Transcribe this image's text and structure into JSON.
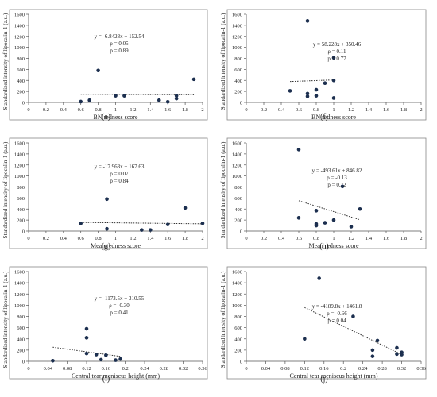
{
  "chart_data": [
    {
      "panel": "(e)",
      "type": "scatter",
      "xlabel": "BN redness score",
      "ylabel": "Standardized intensity of lipocalin-1 (a.u.)",
      "xlim": [
        0,
        2
      ],
      "ylim": [
        0,
        1600
      ],
      "xticks": [
        0,
        0.2,
        0.4,
        0.6,
        0.8,
        1,
        1.2,
        1.4,
        1.6,
        1.8,
        2
      ],
      "xtick_labels": [
        "0",
        "0.2",
        "0.4",
        "0.6",
        "0.8",
        "1",
        "1.2",
        "1.4",
        "1.6",
        "1.8",
        "2"
      ],
      "yticks": [
        0,
        200,
        400,
        600,
        800,
        1000,
        1200,
        1400,
        1600
      ],
      "points": [
        [
          0.6,
          15
        ],
        [
          0.7,
          40
        ],
        [
          0.8,
          580
        ],
        [
          1.0,
          120
        ],
        [
          1.1,
          120
        ],
        [
          1.5,
          40
        ],
        [
          1.6,
          10
        ],
        [
          1.7,
          120
        ],
        [
          1.7,
          70
        ],
        [
          1.9,
          420
        ]
      ],
      "trendline": {
        "slope": -6.8423,
        "intercept": 152.54,
        "x_range": [
          0.6,
          1.9
        ]
      },
      "annotation": [
        "y = -6.8423x + 152.54",
        "ρ = 0.05",
        "p = 0.89"
      ]
    },
    {
      "panel": "(f)",
      "type": "scatter",
      "xlabel": "BN redness score",
      "ylabel": "Standardized intensity of lipocalin-1 (a.u.)",
      "xlim": [
        0,
        2
      ],
      "ylim": [
        0,
        1600
      ],
      "xticks": [
        0,
        0.2,
        0.4,
        0.6,
        0.8,
        1,
        1.2,
        1.4,
        1.6,
        1.8,
        2
      ],
      "xtick_labels": [
        "0",
        "0.2",
        "0.4",
        "0.6",
        "0.8",
        "1",
        "1.2",
        "1.4",
        "1.6",
        "1.8",
        "2"
      ],
      "yticks": [
        0,
        200,
        400,
        600,
        800,
        1000,
        1200,
        1400,
        1600
      ],
      "points": [
        [
          0.5,
          210
        ],
        [
          0.7,
          1480
        ],
        [
          0.7,
          160
        ],
        [
          0.7,
          110
        ],
        [
          0.8,
          230
        ],
        [
          0.8,
          120
        ],
        [
          0.9,
          350
        ],
        [
          1.0,
          400
        ],
        [
          1.0,
          80
        ],
        [
          1.0,
          810
        ]
      ],
      "trendline": {
        "slope": 58.228,
        "intercept": 350.46,
        "x_range": [
          0.5,
          1.0
        ]
      },
      "annotation": [
        "y = 58.228x + 350.46",
        "ρ = 0.11",
        "p = 0.77"
      ]
    },
    {
      "panel": "(g)",
      "type": "scatter",
      "xlabel": "Mean redness score",
      "ylabel": "Standardized intensity of lipocalin-1 (a.u.)",
      "xlim": [
        0,
        2
      ],
      "ylim": [
        0,
        1600
      ],
      "xticks": [
        0,
        0.2,
        0.4,
        0.6,
        0.8,
        1,
        1.2,
        1.4,
        1.6,
        1.8,
        2
      ],
      "xtick_labels": [
        "0",
        "0.2",
        "0.4",
        "0.6",
        "0.8",
        "1",
        "1.2",
        "1.4",
        "1.6",
        "1.8",
        "2"
      ],
      "yticks": [
        0,
        200,
        400,
        600,
        800,
        1000,
        1200,
        1400,
        1600
      ],
      "points": [
        [
          0.6,
          140
        ],
        [
          0.9,
          580
        ],
        [
          0.9,
          40
        ],
        [
          1.3,
          20
        ],
        [
          1.4,
          20
        ],
        [
          1.6,
          120
        ],
        [
          1.8,
          420
        ],
        [
          2.0,
          140
        ]
      ],
      "trendline": {
        "slope": -17.963,
        "intercept": 167.63,
        "x_range": [
          0.6,
          2.0
        ]
      },
      "annotation": [
        "y = -17.963x + 167.63",
        "ρ = 0.07",
        "p = 0.84"
      ]
    },
    {
      "panel": "(h)",
      "type": "scatter",
      "xlabel": "Mean redness score",
      "ylabel": "Standardized intensity of lipocalin-1 (a.u.)",
      "xlim": [
        0,
        2
      ],
      "ylim": [
        0,
        1600
      ],
      "xticks": [
        0,
        0.2,
        0.4,
        0.6,
        0.8,
        1,
        1.2,
        1.4,
        1.6,
        1.8,
        2
      ],
      "xtick_labels": [
        "0",
        "0.2",
        "0.4",
        "0.6",
        "0.8",
        "1",
        "1.2",
        "1.4",
        "1.6",
        "1.8",
        "2"
      ],
      "yticks": [
        0,
        200,
        400,
        600,
        800,
        1000,
        1200,
        1400,
        1600
      ],
      "points": [
        [
          0.6,
          1480
        ],
        [
          0.6,
          240
        ],
        [
          0.8,
          370
        ],
        [
          0.8,
          130
        ],
        [
          0.8,
          100
        ],
        [
          0.9,
          150
        ],
        [
          1.0,
          200
        ],
        [
          1.1,
          810
        ],
        [
          1.2,
          80
        ],
        [
          1.3,
          400
        ]
      ],
      "trendline": {
        "slope": -493.61,
        "intercept": 846.82,
        "x_range": [
          0.6,
          1.3
        ]
      },
      "annotation": [
        "y = -493.61x + 846.82",
        "ρ = -0.13",
        "p = 0.72"
      ]
    },
    {
      "panel": "(i)",
      "type": "scatter",
      "xlabel": "Central tear meniscus height (mm)",
      "ylabel": "Standardized intensity of lipocalin-1 (a.u.)",
      "xlim": [
        0,
        0.36
      ],
      "ylim": [
        0,
        1600
      ],
      "xticks": [
        0,
        0.04,
        0.08,
        0.12,
        0.16,
        0.2,
        0.24,
        0.28,
        0.32,
        0.36
      ],
      "xtick_labels": [
        "0",
        "0.04",
        "0.08",
        "0.12",
        "0.16",
        "0.2",
        "0.24",
        "0.28",
        "0.32",
        "0.36"
      ],
      "yticks": [
        0,
        200,
        400,
        600,
        800,
        1000,
        1200,
        1400,
        1600
      ],
      "points": [
        [
          0.05,
          10
        ],
        [
          0.12,
          580
        ],
        [
          0.12,
          420
        ],
        [
          0.12,
          140
        ],
        [
          0.14,
          120
        ],
        [
          0.15,
          30
        ],
        [
          0.16,
          110
        ],
        [
          0.18,
          20
        ],
        [
          0.19,
          40
        ]
      ],
      "trendline": {
        "slope": -1173.5,
        "intercept": 310.55,
        "x_range": [
          0.05,
          0.19
        ]
      },
      "annotation": [
        "y = -1173.5x + 310.55",
        "ρ = -0.30",
        "p = 0.41"
      ]
    },
    {
      "panel": "(j)",
      "type": "scatter",
      "xlabel": "Central tear meniscus height (mm)",
      "ylabel": "Standardized intensity of lipocalin-1 (a.u.)",
      "xlim": [
        0,
        0.36
      ],
      "ylim": [
        0,
        1600
      ],
      "xticks": [
        0,
        0.04,
        0.08,
        0.12,
        0.16,
        0.2,
        0.24,
        0.28,
        0.32,
        0.36
      ],
      "xtick_labels": [
        "0",
        "0.04",
        "0.08",
        "0.12",
        "0.16",
        "0.2",
        "0.24",
        "0.28",
        "0.32",
        "0.36"
      ],
      "yticks": [
        0,
        200,
        400,
        600,
        800,
        1000,
        1200,
        1400,
        1600
      ],
      "points": [
        [
          0.12,
          400
        ],
        [
          0.15,
          1480
        ],
        [
          0.22,
          800
        ],
        [
          0.26,
          200
        ],
        [
          0.26,
          90
        ],
        [
          0.27,
          370
        ],
        [
          0.31,
          240
        ],
        [
          0.31,
          130
        ],
        [
          0.32,
          160
        ],
        [
          0.32,
          120
        ]
      ],
      "trendline": {
        "slope": -4189.8,
        "intercept": 1461.8,
        "x_range": [
          0.12,
          0.32
        ]
      },
      "annotation": [
        "y = -4189.8x + 1461.8",
        "ρ = -0.66",
        "p = 0.04"
      ]
    }
  ]
}
